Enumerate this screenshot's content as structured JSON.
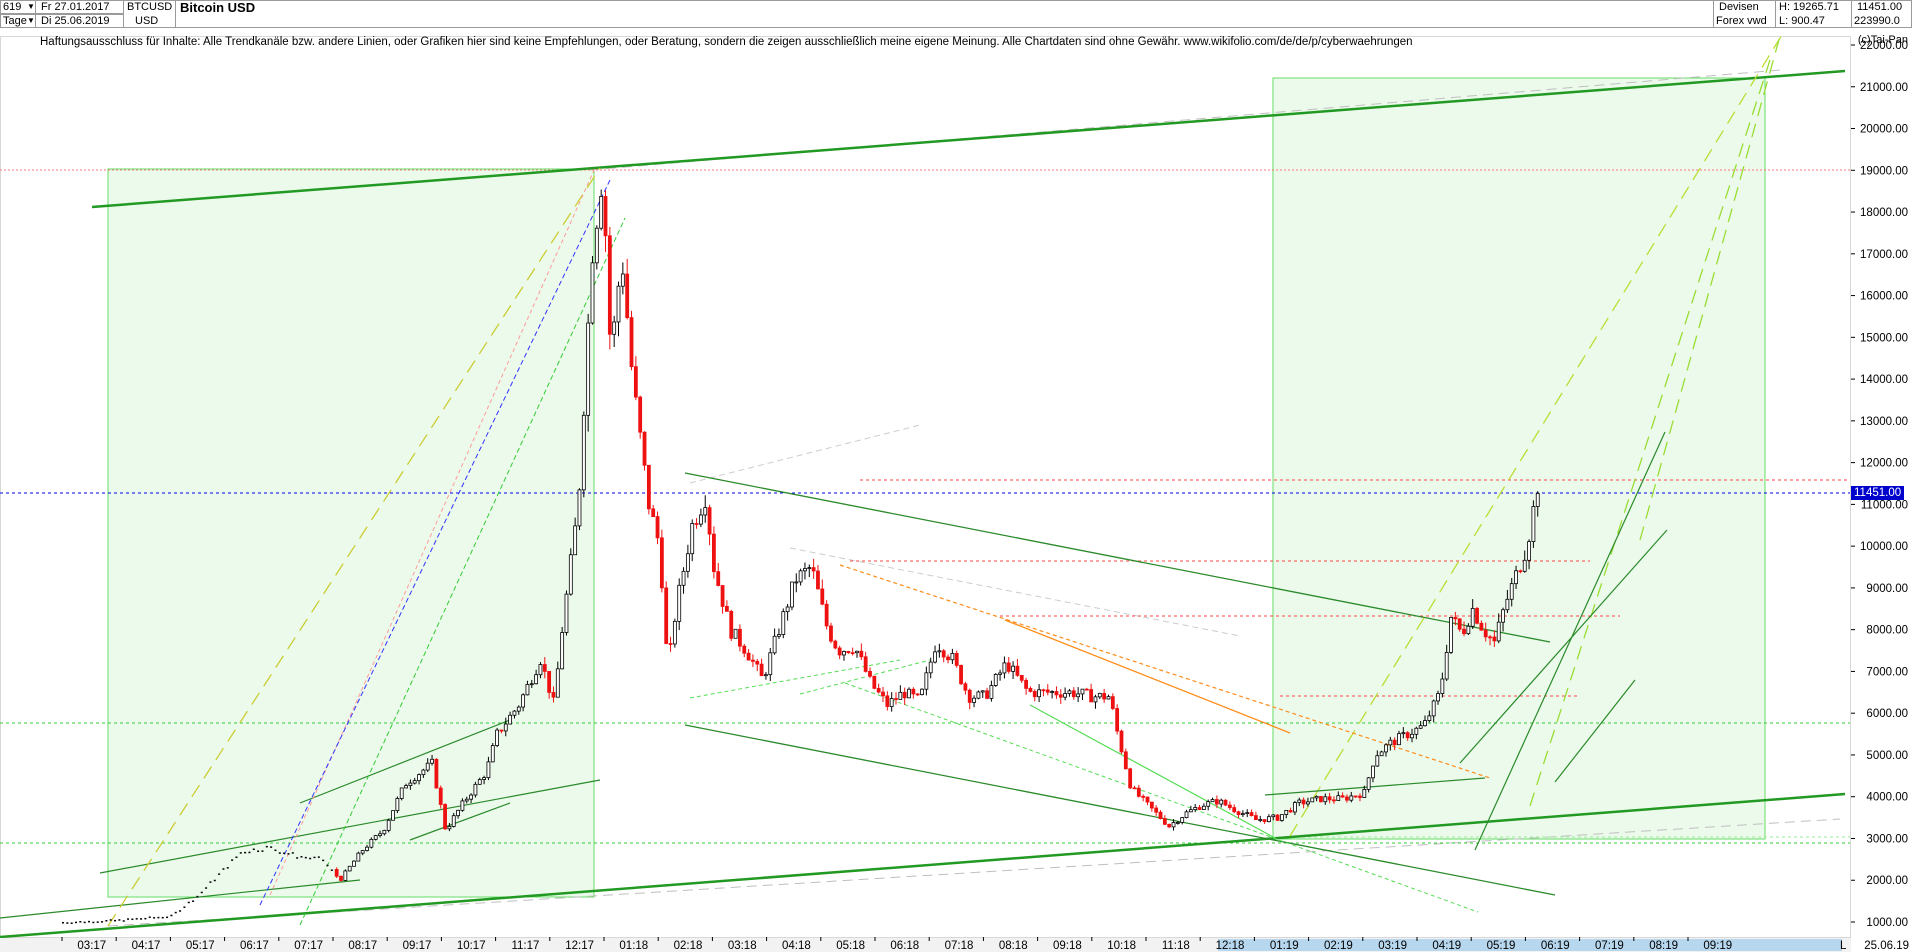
{
  "header": {
    "count": "619",
    "start_date": "Fr 27.01.2017",
    "end_date": "Di 25.06.2019",
    "period": "Tage",
    "symbol": "BTCUSD",
    "currency": "USD",
    "title": "Bitcoin USD",
    "exchange": "Devisen",
    "source": "Forex vwd",
    "high_label": "H: 19265.71",
    "low_label": "L: 900.47",
    "last_value": "11451.00",
    "volume_value": "223990.0"
  },
  "disclaimer": "Haftungsausschluss für Inhalte: Alle Trendkanäle bzw. andere Linien, oder Grafiken hier sind keine Empfehlungen, oder Beratung, sondern die zeigen ausschließlich meine eigene Meinung. Alle Chartdaten sind ohne Gewähr.  www.wikifolio.com/de/de/p/cyberwaehrungen",
  "copyright": "(c)Tai-Pan",
  "last_price_label": "11451.00",
  "x_end_label": "25.06.19",
  "x_right_marker": "L",
  "chart_data": {
    "type": "candlestick",
    "title": "Bitcoin USD",
    "y_ticks": [
      1000,
      2000,
      3000,
      4000,
      5000,
      6000,
      7000,
      8000,
      9000,
      10000,
      11000,
      12000,
      13000,
      14000,
      15000,
      16000,
      17000,
      18000,
      19000,
      20000,
      21000,
      22000
    ],
    "y_tick_labels": [
      "1000.00",
      "2000.00",
      "3000.00",
      "4000.00",
      "5000.00",
      "6000.00",
      "7000.00",
      "8000.00",
      "9000.00",
      "10000.00",
      "11000.00",
      "12000.00",
      "13000.00",
      "14000.00",
      "15000.00",
      "16000.00",
      "17000.00",
      "18000.00",
      "19000.00",
      "20000.00",
      "21000.00",
      "22000.00"
    ],
    "ylim": [
      600,
      22500
    ],
    "x_tick_labels": [
      "03:17",
      "04:17",
      "05:17",
      "06:17",
      "07:17",
      "08:17",
      "09:17",
      "10:17",
      "11:17",
      "12:17",
      "01:18",
      "02:18",
      "03:18",
      "04:18",
      "05:18",
      "06:18",
      "07:18",
      "08:18",
      "09:18",
      "10:18",
      "11:18",
      "12:18",
      "01:19",
      "02:19",
      "03:19",
      "04:19",
      "05:19",
      "06:19",
      "07:19",
      "08:19",
      "09:19"
    ],
    "last_price": 11451,
    "anchors": [
      {
        "m": 0.0,
        "v": 1000
      },
      {
        "m": 1.0,
        "v": 1050
      },
      {
        "m": 2.0,
        "v": 1150
      },
      {
        "m": 2.5,
        "v": 1650
      },
      {
        "m": 3.3,
        "v": 2700
      },
      {
        "m": 3.8,
        "v": 2800
      },
      {
        "m": 4.3,
        "v": 2600
      },
      {
        "m": 4.8,
        "v": 2500
      },
      {
        "m": 5.1,
        "v": 2000
      },
      {
        "m": 5.5,
        "v": 2700
      },
      {
        "m": 5.9,
        "v": 3200
      },
      {
        "m": 6.3,
        "v": 4300
      },
      {
        "m": 6.8,
        "v": 4800
      },
      {
        "m": 7.05,
        "v": 3200
      },
      {
        "m": 7.4,
        "v": 3900
      },
      {
        "m": 7.8,
        "v": 4600
      },
      {
        "m": 8.0,
        "v": 5500
      },
      {
        "m": 8.4,
        "v": 6200
      },
      {
        "m": 8.8,
        "v": 7300
      },
      {
        "m": 9.05,
        "v": 6200
      },
      {
        "m": 9.2,
        "v": 8000
      },
      {
        "m": 9.5,
        "v": 11000
      },
      {
        "m": 9.75,
        "v": 17000
      },
      {
        "m": 9.95,
        "v": 19000
      },
      {
        "m": 10.1,
        "v": 14500
      },
      {
        "m": 10.3,
        "v": 17000
      },
      {
        "m": 10.5,
        "v": 14000
      },
      {
        "m": 10.8,
        "v": 11000
      },
      {
        "m": 11.0,
        "v": 10000
      },
      {
        "m": 11.15,
        "v": 7000
      },
      {
        "m": 11.3,
        "v": 8500
      },
      {
        "m": 11.6,
        "v": 10500
      },
      {
        "m": 11.85,
        "v": 11200
      },
      {
        "m": 12.0,
        "v": 9500
      },
      {
        "m": 12.3,
        "v": 8000
      },
      {
        "m": 12.6,
        "v": 7500
      },
      {
        "m": 12.9,
        "v": 6800
      },
      {
        "m": 13.2,
        "v": 8000
      },
      {
        "m": 13.5,
        "v": 9200
      },
      {
        "m": 13.8,
        "v": 9500
      },
      {
        "m": 14.1,
        "v": 8000
      },
      {
        "m": 14.3,
        "v": 7500
      },
      {
        "m": 14.6,
        "v": 7600
      },
      {
        "m": 14.9,
        "v": 6700
      },
      {
        "m": 15.2,
        "v": 6200
      },
      {
        "m": 15.5,
        "v": 6500
      },
      {
        "m": 15.8,
        "v": 6300
      },
      {
        "m": 16.1,
        "v": 7700
      },
      {
        "m": 16.4,
        "v": 7300
      },
      {
        "m": 16.7,
        "v": 6400
      },
      {
        "m": 17.0,
        "v": 6400
      },
      {
        "m": 17.4,
        "v": 7200
      },
      {
        "m": 17.8,
        "v": 6500
      },
      {
        "m": 18.2,
        "v": 6500
      },
      {
        "m": 18.6,
        "v": 6500
      },
      {
        "m": 19.0,
        "v": 6400
      },
      {
        "m": 19.3,
        "v": 6400
      },
      {
        "m": 19.45,
        "v": 5500
      },
      {
        "m": 19.7,
        "v": 4200
      },
      {
        "m": 20.0,
        "v": 3800
      },
      {
        "m": 20.4,
        "v": 3300
      },
      {
        "m": 20.7,
        "v": 3600
      },
      {
        "m": 21.0,
        "v": 3800
      },
      {
        "m": 21.3,
        "v": 3900
      },
      {
        "m": 21.6,
        "v": 3700
      },
      {
        "m": 22.0,
        "v": 3450
      },
      {
        "m": 22.4,
        "v": 3500
      },
      {
        "m": 22.8,
        "v": 3850
      },
      {
        "m": 23.2,
        "v": 3950
      },
      {
        "m": 23.6,
        "v": 3950
      },
      {
        "m": 24.0,
        "v": 4100
      },
      {
        "m": 24.2,
        "v": 5000
      },
      {
        "m": 24.5,
        "v": 5300
      },
      {
        "m": 24.8,
        "v": 5500
      },
      {
        "m": 25.1,
        "v": 5700
      },
      {
        "m": 25.4,
        "v": 6500
      },
      {
        "m": 25.6,
        "v": 8300
      },
      {
        "m": 25.8,
        "v": 7900
      },
      {
        "m": 26.0,
        "v": 8500
      },
      {
        "m": 26.2,
        "v": 8000
      },
      {
        "m": 26.4,
        "v": 7700
      },
      {
        "m": 26.6,
        "v": 8600
      },
      {
        "m": 26.8,
        "v": 9300
      },
      {
        "m": 27.0,
        "v": 10000
      },
      {
        "m": 27.2,
        "v": 11451
      }
    ]
  }
}
